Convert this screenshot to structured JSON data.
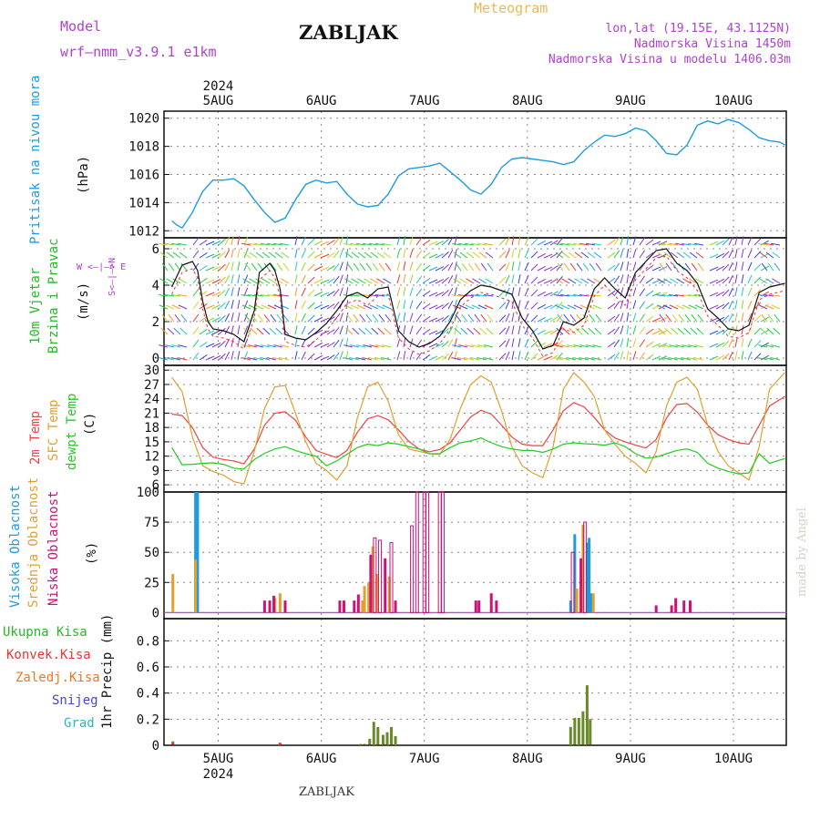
{
  "header": {
    "model_label": "Model",
    "model_name": "wrf–nmm_v3.9.1  e1km",
    "title": "ZABLJAK",
    "meteogram": "Meteogram",
    "lonlat": "lon,lat (19.15E, 43.1125N)",
    "altitude": "Nadmorska Visina 1450m",
    "model_altitude": "Nadmorska Visina u modelu 1406.03m"
  },
  "footer": {
    "station": "ZABLJAK",
    "credit": "made by Angel"
  },
  "colors": {
    "pressure": "#1e9be0",
    "t2m": "#ee4444",
    "sfc": "#e0a030",
    "dewpt": "#22cc22",
    "high_cloud": "#1e9be0",
    "mid_cloud": "#e0a030",
    "low_cloud": "#cc1177",
    "total_precip": "#22bb22",
    "convective": "#ee3333",
    "freezing": "#ee7722",
    "snow": "#4444dd",
    "hail": "#22bbbb",
    "title": "#111111",
    "model": "#b040d0",
    "meteogram": "#e8b858"
  },
  "axes": {
    "top_year": "2024",
    "bottom_year": "2024",
    "days": [
      "5AUG",
      "6AUG",
      "7AUG",
      "8AUG",
      "9AUG",
      "10AUG"
    ]
  },
  "labels": {
    "pressure": [
      "Pritisak na nivou mora",
      "(hPa)"
    ],
    "wind": [
      "10m Vjetar",
      "Brzina i Pravac",
      "(m/s)"
    ],
    "wind_compass": [
      "W  <–|–>  E",
      "S<–|–>N"
    ],
    "temp": [
      "2m Temp",
      "SFC Temp",
      "dewpt Temp",
      "(C)"
    ],
    "cloud": [
      "Visoka Oblacnost",
      "Srednja Oblacnost",
      "Niska Oblacnost",
      "(%)"
    ],
    "precip": [
      "Ukupna Kisa",
      "Konvek.Kisa",
      "Zaledj.Kisa",
      "Snijeg",
      "Grad",
      "1hr Precip (mm)"
    ]
  },
  "chart_data": [
    {
      "panel": "pressure",
      "type": "line",
      "ylabel": "(hPa)",
      "ylim": [
        1011.5,
        1020.5
      ],
      "yticks": [
        1012,
        1014,
        1016,
        1018,
        1020
      ],
      "series": [
        {
          "name": "Pritisak na nivou mora",
          "x": [
            4.55,
            4.6,
            4.65,
            4.75,
            4.85,
            4.95,
            5.05,
            5.15,
            5.25,
            5.35,
            5.45,
            5.55,
            5.65,
            5.75,
            5.85,
            5.95,
            6.05,
            6.15,
            6.25,
            6.35,
            6.45,
            6.55,
            6.65,
            6.75,
            6.85,
            6.95,
            7.05,
            7.15,
            7.25,
            7.35,
            7.45,
            7.55,
            7.65,
            7.75,
            7.85,
            7.95,
            8.05,
            8.15,
            8.25,
            8.35,
            8.45,
            8.55,
            8.65,
            8.75,
            8.85,
            8.95,
            9.05,
            9.15,
            9.25,
            9.35,
            9.45,
            9.55,
            9.65,
            9.75,
            9.85,
            9.95,
            10.05,
            10.15,
            10.25,
            10.35,
            10.45,
            10.5
          ],
          "y": [
            1012.7,
            1012.4,
            1012.2,
            1013.3,
            1014.8,
            1015.6,
            1015.6,
            1015.7,
            1015.2,
            1014.2,
            1013.3,
            1012.6,
            1012.9,
            1014.2,
            1015.3,
            1015.6,
            1015.4,
            1015.5,
            1014.6,
            1013.9,
            1013.7,
            1013.8,
            1014.6,
            1015.9,
            1016.4,
            1016.5,
            1016.6,
            1016.8,
            1016.2,
            1015.6,
            1014.9,
            1014.6,
            1015.3,
            1016.5,
            1017.1,
            1017.2,
            1017.1,
            1017.0,
            1016.9,
            1016.7,
            1016.9,
            1017.7,
            1018.3,
            1018.8,
            1018.7,
            1018.9,
            1019.3,
            1019.1,
            1018.4,
            1017.5,
            1017.4,
            1018.1,
            1019.5,
            1019.8,
            1019.6,
            1019.9,
            1019.7,
            1019.2,
            1018.6,
            1018.4,
            1018.3,
            1018.1
          ]
        }
      ]
    },
    {
      "panel": "wind",
      "type": "line",
      "ylabel": "(m/s)",
      "ylim": [
        -0.4,
        6.6
      ],
      "yticks": [
        0,
        2,
        4,
        6
      ],
      "series": [
        {
          "name": "Brzina",
          "x": [
            4.55,
            4.65,
            4.75,
            4.8,
            4.85,
            4.9,
            4.95,
            5.05,
            5.15,
            5.25,
            5.35,
            5.4,
            5.5,
            5.55,
            5.6,
            5.65,
            5.75,
            5.85,
            5.95,
            6.05,
            6.15,
            6.25,
            6.35,
            6.45,
            6.55,
            6.65,
            6.75,
            6.85,
            6.95,
            7.05,
            7.15,
            7.25,
            7.35,
            7.45,
            7.55,
            7.65,
            7.75,
            7.85,
            7.95,
            8.05,
            8.15,
            8.25,
            8.35,
            8.45,
            8.55,
            8.65,
            8.75,
            8.85,
            8.95,
            9.05,
            9.15,
            9.25,
            9.35,
            9.45,
            9.55,
            9.65,
            9.75,
            9.85,
            9.95,
            10.05,
            10.15,
            10.25,
            10.35,
            10.5
          ],
          "y": [
            3.9,
            5.1,
            5.3,
            4.8,
            3.1,
            2.0,
            1.6,
            1.5,
            1.3,
            0.9,
            2.6,
            4.7,
            5.2,
            4.8,
            3.8,
            1.3,
            1.1,
            1.0,
            1.4,
            1.9,
            2.6,
            3.4,
            3.6,
            3.3,
            3.8,
            3.9,
            1.5,
            0.9,
            0.6,
            0.8,
            1.2,
            2.0,
            3.2,
            3.7,
            4.0,
            3.9,
            3.7,
            3.5,
            2.2,
            1.5,
            0.5,
            0.7,
            2.0,
            1.8,
            2.2,
            3.8,
            4.4,
            3.8,
            3.3,
            4.7,
            5.3,
            5.9,
            6.0,
            5.2,
            4.8,
            4.1,
            2.7,
            2.2,
            1.6,
            1.5,
            1.8,
            3.6,
            3.9,
            4.1
          ]
        }
      ]
    },
    {
      "panel": "temperature",
      "type": "line",
      "ylabel": "(C)",
      "ylim": [
        4.5,
        31
      ],
      "yticks": [
        6,
        9,
        12,
        15,
        18,
        21,
        24,
        27,
        30
      ],
      "x": [
        4.55,
        4.65,
        4.75,
        4.85,
        4.95,
        5.05,
        5.15,
        5.25,
        5.35,
        5.45,
        5.55,
        5.65,
        5.75,
        5.85,
        5.95,
        6.05,
        6.15,
        6.25,
        6.35,
        6.45,
        6.55,
        6.65,
        6.75,
        6.85,
        6.95,
        7.05,
        7.15,
        7.25,
        7.35,
        7.45,
        7.55,
        7.65,
        7.75,
        7.85,
        7.95,
        8.05,
        8.15,
        8.25,
        8.35,
        8.45,
        8.55,
        8.65,
        8.75,
        8.85,
        8.95,
        9.05,
        9.15,
        9.25,
        9.35,
        9.45,
        9.55,
        9.65,
        9.75,
        9.85,
        9.95,
        10.05,
        10.15,
        10.25,
        10.35,
        10.5
      ],
      "series": [
        {
          "name": "2m Temp",
          "y": [
            20.8,
            20.5,
            18.0,
            13.8,
            11.8,
            11.3,
            11.0,
            10.4,
            13.5,
            18.5,
            21.0,
            21.3,
            19.5,
            16.0,
            13.2,
            12.4,
            11.7,
            13.2,
            17.0,
            19.8,
            20.5,
            19.6,
            17.5,
            15.1,
            13.5,
            12.9,
            13.4,
            14.8,
            17.5,
            20.2,
            21.6,
            20.8,
            18.5,
            16.0,
            14.5,
            14.2,
            14.2,
            17.5,
            21.5,
            23.2,
            22.3,
            20.1,
            17.5,
            15.8,
            15.0,
            14.3,
            13.7,
            15.5,
            20.0,
            22.8,
            23.0,
            21.2,
            18.5,
            16.5,
            15.5,
            14.8,
            14.5,
            18.5,
            22.5,
            24.5
          ]
        },
        {
          "name": "SFC Temp",
          "y": [
            28.5,
            25.5,
            16.0,
            10.0,
            8.8,
            8.0,
            6.7,
            6.2,
            13.0,
            22.0,
            26.5,
            26.8,
            21.0,
            15.0,
            10.5,
            9.0,
            7.0,
            10.0,
            20.0,
            26.5,
            27.5,
            23.5,
            16.5,
            13.5,
            13.0,
            12.5,
            12.4,
            15.5,
            22.0,
            27.0,
            28.8,
            27.5,
            21.5,
            14.0,
            10.0,
            8.5,
            7.5,
            14.0,
            26.0,
            29.5,
            27.5,
            24.5,
            17.5,
            14.5,
            12.0,
            10.5,
            8.5,
            13.0,
            22.5,
            27.5,
            28.5,
            26.0,
            18.5,
            13.0,
            10.0,
            8.5,
            7.0,
            14.0,
            26.0,
            29.5
          ]
        },
        {
          "name": "dewpt Temp",
          "y": [
            13.8,
            10.2,
            10.3,
            10.5,
            10.6,
            10.3,
            9.5,
            9.3,
            11.3,
            12.6,
            13.5,
            14.0,
            13.2,
            12.5,
            12.0,
            10.0,
            11.0,
            12.4,
            13.8,
            14.5,
            14.2,
            14.8,
            14.5,
            14.0,
            13.5,
            12.5,
            12.5,
            13.8,
            14.8,
            15.2,
            15.8,
            14.8,
            14.0,
            13.5,
            13.2,
            13.2,
            12.8,
            13.5,
            14.5,
            14.8,
            14.6,
            14.5,
            14.3,
            14.8,
            14.0,
            12.5,
            11.6,
            11.8,
            12.5,
            13.2,
            13.5,
            12.8,
            10.5,
            9.5,
            8.8,
            8.3,
            8.5,
            12.5,
            10.5,
            11.5
          ]
        }
      ]
    },
    {
      "panel": "cloud",
      "type": "bar",
      "ylabel": "(%)",
      "ylim": [
        -5,
        100
      ],
      "yticks": [
        0,
        25,
        50,
        75,
        100
      ],
      "series": [
        {
          "name": "Visoka Oblacnost",
          "x": [
            4.78,
            4.8,
            8.42,
            8.46,
            8.58,
            8.6,
            8.62
          ],
          "values": [
            100,
            100,
            10,
            65,
            58,
            62,
            16
          ]
        },
        {
          "name": "Srednja Oblacnost",
          "x": [
            4.56,
            4.78,
            5.55,
            5.6,
            6.4,
            6.42,
            6.46,
            6.5,
            6.54,
            6.66,
            8.48,
            8.54,
            8.64
          ],
          "values": [
            32,
            44,
            12,
            16,
            10,
            22,
            25,
            55,
            32,
            30,
            20,
            73,
            16
          ]
        },
        {
          "name": "Niska Oblacnost",
          "x": [
            5.45,
            5.5,
            5.54,
            5.65,
            6.18,
            6.22,
            6.32,
            6.36,
            6.48,
            6.52,
            6.57,
            6.62,
            6.68,
            6.72,
            6.88,
            6.93,
            7.0,
            7.03,
            7.15,
            7.18,
            7.5,
            7.53,
            7.65,
            7.7,
            8.44,
            8.52,
            8.56,
            9.25,
            9.4,
            9.44,
            9.52,
            9.58
          ],
          "values": [
            10,
            10,
            14,
            10,
            10,
            10,
            10,
            15,
            48,
            62,
            60,
            45,
            58,
            10,
            72,
            100,
            100,
            100,
            100,
            100,
            10,
            10,
            16,
            10,
            50,
            45,
            75,
            6,
            6,
            12,
            10,
            10
          ]
        }
      ]
    },
    {
      "panel": "precip",
      "type": "bar",
      "ylabel": "1hr Precip (mm)",
      "ylim": [
        0,
        0.97
      ],
      "yticks": [
        0,
        0.2,
        0.4,
        0.6,
        0.8
      ],
      "series": [
        {
          "name": "Ukupna Kisa",
          "x": [
            4.56,
            5.6,
            6.38,
            6.42,
            6.47,
            6.51,
            6.55,
            6.6,
            6.64,
            6.68,
            6.72,
            8.42,
            8.46,
            8.5,
            8.54,
            8.58,
            8.61
          ],
          "values": [
            0.03,
            0.02,
            0.01,
            0.01,
            0.05,
            0.18,
            0.14,
            0.08,
            0.1,
            0.14,
            0.07,
            0.14,
            0.21,
            0.21,
            0.26,
            0.46,
            0.2
          ]
        },
        {
          "name": "Konvek.Kisa",
          "x": [
            4.56,
            5.6
          ],
          "values": [
            0.02,
            0.015
          ]
        },
        {
          "name": "Zaledj.Kisa",
          "x": [],
          "values": []
        },
        {
          "name": "Snijeg",
          "x": [],
          "values": []
        },
        {
          "name": "Grad",
          "x": [],
          "values": []
        }
      ]
    }
  ]
}
